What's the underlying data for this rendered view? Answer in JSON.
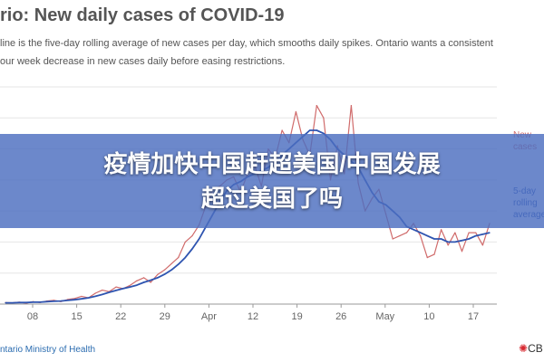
{
  "title": "rio: New daily cases of COVID-19",
  "subtitle_lines": [
    "line is the five-day rolling average of new cases per day, which smooths daily spikes. Ontario wants a consistent",
    "our week decrease in new cases daily before easing restrictions."
  ],
  "overlay_text": {
    "line1": "疫情加快中国赶超美国/中国发展",
    "line2": "超过美国了吗"
  },
  "source": "ntario Ministry of Health",
  "logo": "CB",
  "colors": {
    "new_cases": "#d06b6b",
    "rolling_average": "#2e54b0",
    "banner": "#4c6ec0",
    "axis_text": "#666666"
  },
  "chart_data": {
    "type": "line",
    "x_ticks": [
      "08",
      "15",
      "22",
      "29",
      "Apr",
      "12",
      "19",
      "26",
      "May",
      "10",
      "17"
    ],
    "ylim": [
      0,
      700
    ],
    "grid": true,
    "legend": [
      {
        "label_line1": "New",
        "label_line2": "cases",
        "series": "new_cases"
      },
      {
        "label_line1": "5-day",
        "label_line2": "rolling",
        "label_line3": "average",
        "series": "rolling_average"
      }
    ],
    "series": [
      {
        "key": "new_cases",
        "values": [
          5,
          4,
          6,
          3,
          8,
          5,
          10,
          12,
          8,
          15,
          18,
          25,
          20,
          35,
          45,
          40,
          55,
          50,
          60,
          75,
          85,
          70,
          95,
          110,
          130,
          150,
          200,
          220,
          255,
          318,
          370,
          380,
          400,
          410,
          360,
          420,
          450,
          380,
          500,
          470,
          560,
          520,
          620,
          530,
          480,
          640,
          600,
          400,
          510,
          420,
          640,
          390,
          300,
          340,
          370,
          290,
          210,
          220,
          230,
          260,
          220,
          150,
          160,
          240,
          190,
          230,
          170,
          230,
          230,
          190,
          260
        ]
      },
      {
        "key": "rolling_average",
        "values": [
          4,
          4,
          5,
          5,
          6,
          6,
          8,
          9,
          10,
          12,
          14,
          17,
          20,
          25,
          31,
          38,
          44,
          50,
          55,
          61,
          70,
          77,
          85,
          96,
          110,
          128,
          150,
          178,
          210,
          250,
          290,
          330,
          365,
          385,
          395,
          410,
          420,
          430,
          440,
          460,
          480,
          500,
          520,
          540,
          560,
          560,
          550,
          530,
          500,
          480,
          460,
          440,
          400,
          360,
          330,
          320,
          300,
          280,
          250,
          240,
          230,
          220,
          210,
          210,
          200,
          200,
          205,
          210,
          220,
          225,
          230
        ]
      }
    ]
  }
}
